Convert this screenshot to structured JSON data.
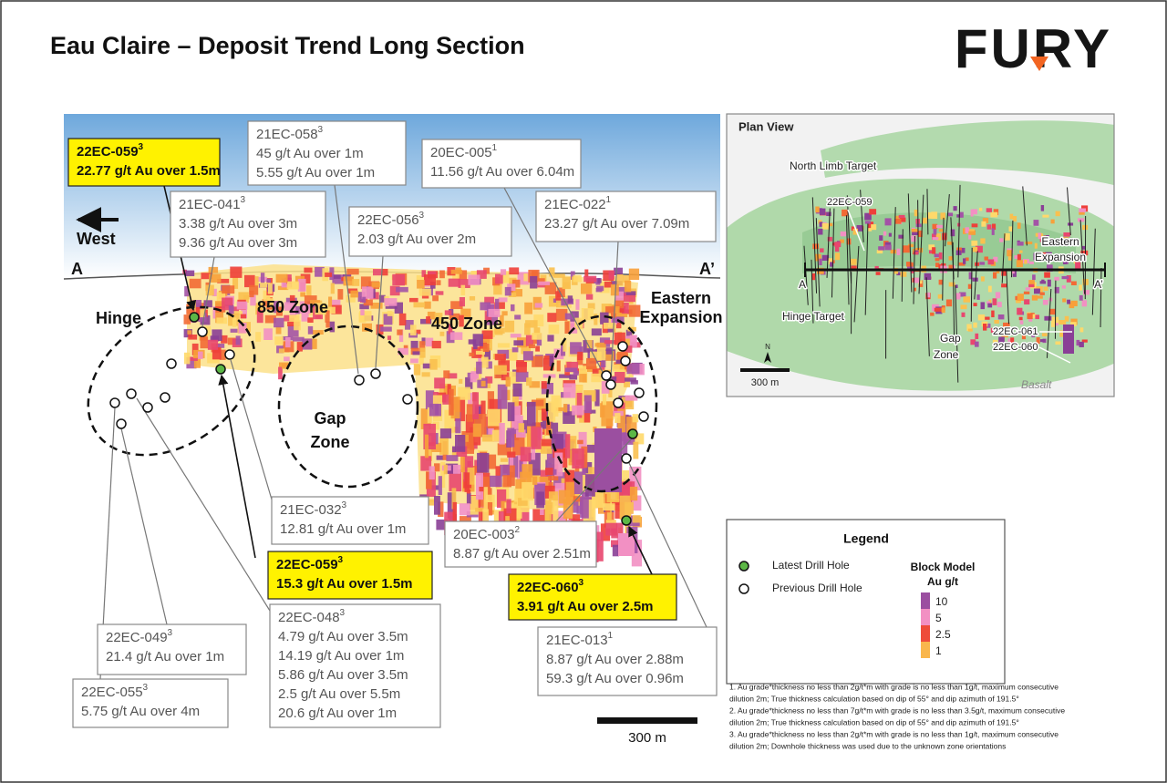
{
  "header": {
    "title": "Eau Claire – Deposit Trend Long Section",
    "logo": "FURY"
  },
  "section": {
    "west": "West",
    "a_left": "A",
    "a_right": "A’",
    "zones": {
      "zone850": "850 Zone",
      "zone450": "450 Zone",
      "hinge": "Hinge",
      "gap": [
        "Gap",
        "Zone"
      ],
      "eastern": [
        "Eastern",
        "Expansion"
      ]
    },
    "callouts": [
      {
        "hole": "22EC-059",
        "note": "3",
        "lines": [
          "22.77 g/t Au over 1.5m"
        ],
        "latest": true
      },
      {
        "hole": "21EC-041",
        "note": "3",
        "lines": [
          "3.38 g/t Au over 3m",
          "9.36 g/t Au over 3m"
        ],
        "latest": false
      },
      {
        "hole": "21EC-058",
        "note": "3",
        "lines": [
          "45 g/t Au over 1m",
          "5.55 g/t Au over 1m"
        ],
        "latest": false
      },
      {
        "hole": "22EC-056",
        "note": "3",
        "lines": [
          "2.03 g/t Au over 2m"
        ],
        "latest": false
      },
      {
        "hole": "20EC-005",
        "note": "1",
        "lines": [
          "11.56 g/t Au over 6.04m"
        ],
        "latest": false
      },
      {
        "hole": "21EC-022",
        "note": "1",
        "lines": [
          "23.27 g/t Au over 7.09m"
        ],
        "latest": false
      },
      {
        "hole": "21EC-032",
        "note": "3",
        "lines": [
          "12.81 g/t Au over 1m"
        ],
        "latest": false
      },
      {
        "hole": "22EC-059",
        "note": "3",
        "lines": [
          "15.3 g/t Au over 1.5m"
        ],
        "latest": true
      },
      {
        "hole": "22EC-048",
        "note": "3",
        "lines": [
          "4.79 g/t Au over 3.5m",
          "14.19 g/t Au over 1m",
          "5.86 g/t Au over 3.5m",
          "2.5 g/t Au over 5.5m",
          "20.6 g/t Au over 1m"
        ],
        "latest": false
      },
      {
        "hole": "22EC-049",
        "note": "3",
        "lines": [
          "21.4 g/t Au over 1m"
        ],
        "latest": false
      },
      {
        "hole": "22EC-055",
        "note": "3",
        "lines": [
          "5.75 g/t Au over 4m"
        ],
        "latest": false
      },
      {
        "hole": "20EC-003",
        "note": "2",
        "lines": [
          "8.87 g/t Au over 2.51m"
        ],
        "latest": false
      },
      {
        "hole": "22EC-060",
        "note": "3",
        "lines": [
          "3.91 g/t Au over 2.5m"
        ],
        "latest": true
      },
      {
        "hole": "21EC-013",
        "note": "1",
        "lines": [
          "8.87 g/t Au over 2.88m",
          "59.3 g/t Au over 0.96m"
        ],
        "latest": false
      }
    ],
    "scale_bar": "300 m"
  },
  "plan_view": {
    "title": "Plan View",
    "north_limb": "North Limb Target",
    "hole_059": "22EC-059",
    "eastern": [
      "Eastern",
      "Expansion"
    ],
    "a_left": "A",
    "a_right": "A’",
    "hinge": "Hinge Target",
    "gap": [
      "Gap",
      "Zone"
    ],
    "hole_061": "22EC-061",
    "hole_060": "22EC-060",
    "basalt": "Basalt",
    "north": "N",
    "scale": "300 m"
  },
  "legend": {
    "title": "Legend",
    "latest": "Latest Drill Hole",
    "previous": "Previous Drill Hole",
    "block_model": [
      "Block Model",
      "Au g/t"
    ],
    "grades": [
      "10",
      "5",
      "2.5",
      "1"
    ]
  },
  "footnotes": [
    [
      "1. Au grade*thickness no less than 2g/t*m with grade is no less than 1g/t, maximum consecutive",
      "dilution 2m; True thickness calculation based on dip of 55° and dip azimuth of 191.5°"
    ],
    [
      "2. Au grade*thickness no less than 7g/t*m with grade is no less than 3.5g/t, maximum consecutive",
      "dilution 2m; True thickness calculation based on dip of 55° and dip azimuth of 191.5°"
    ],
    [
      "3. Au grade*thickness no less than 2g/t*m with grade is no less than 1g/t, maximum consecutive",
      "dilution 2m; Downhole thickness was used due to the unknown zone orientations"
    ]
  ]
}
